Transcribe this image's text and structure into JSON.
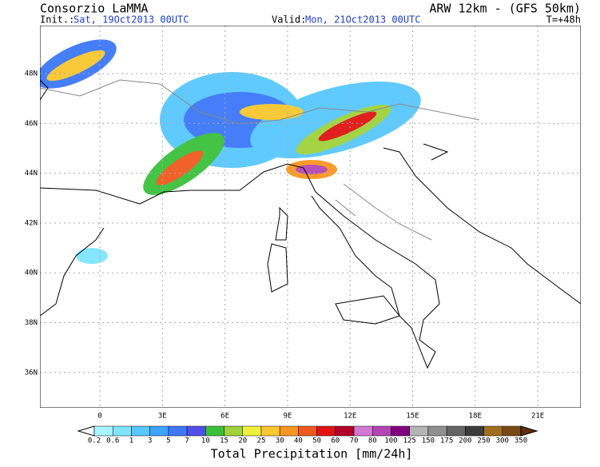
{
  "header": {
    "title": "Consorzio LaMMA",
    "model": "ARW 12km - (GFS 50km)",
    "init_label": "Init.:",
    "init": "Sat, 19Oct2013 00UTC",
    "valid_label": "Valid:",
    "valid": "Mon, 21Oct2013 00UTC",
    "lead": "T=+48h"
  },
  "map": {
    "lat_labels": [
      "48N",
      "46N",
      "44N",
      "42N",
      "40N",
      "38N",
      "36N"
    ],
    "lon_labels": [
      "0",
      "3E",
      "6E",
      "9E",
      "12E",
      "15E",
      "18E",
      "21E"
    ]
  },
  "legend": {
    "title": "Total Precipitation [mm/24h]",
    "labels": [
      "0.2",
      "0.6",
      "1",
      "3",
      "5",
      "7",
      "10",
      "15",
      "20",
      "25",
      "30",
      "40",
      "50",
      "60",
      "70",
      "80",
      "100",
      "125",
      "150",
      "175",
      "200",
      "250",
      "300",
      "350"
    ],
    "low_color": "#ffffff",
    "high_color": "#603010",
    "colors": [
      "#a8f4ff",
      "#80e4ff",
      "#58c8ff",
      "#3ca4ff",
      "#3c78f8",
      "#5050e8",
      "#3cc03c",
      "#a0d23c",
      "#f0f03c",
      "#f8c830",
      "#f89620",
      "#f05a1e",
      "#e01414",
      "#b40028",
      "#d278d2",
      "#b446b4",
      "#820082",
      "#b4b4b4",
      "#909090",
      "#646464",
      "#3c3c3c",
      "#a06e1e",
      "#7a4a14"
    ]
  }
}
